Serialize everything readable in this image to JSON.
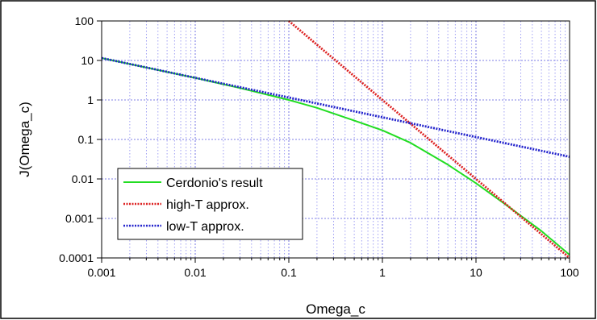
{
  "chart_data": {
    "type": "line",
    "xlabel": "Omega_c",
    "ylabel": "J(Omega_c)",
    "x_scale": "log",
    "y_scale": "log",
    "xlim": [
      0.001,
      100
    ],
    "ylim": [
      0.0001,
      100
    ],
    "x_ticks": [
      "0.001",
      "0.01",
      "0.1",
      "1",
      "10",
      "100"
    ],
    "y_ticks": [
      "100",
      "10",
      "1",
      "0.1",
      "0.01",
      "0.001",
      "0.0001"
    ],
    "grid": true,
    "legend_position": "lower-left",
    "series": [
      {
        "name": "Cerdonio's result",
        "color": "#22dd22",
        "style": "solid",
        "x": [
          0.001,
          0.003,
          0.01,
          0.03,
          0.1,
          0.2,
          0.5,
          1,
          2,
          5,
          10,
          20,
          50,
          100
        ],
        "y": [
          11.5,
          6.6,
          3.6,
          2.0,
          1.0,
          0.63,
          0.3,
          0.17,
          0.082,
          0.023,
          0.0078,
          0.0024,
          0.00048,
          0.00012
        ]
      },
      {
        "name": "high-T approx.",
        "color": "#dd2222",
        "style": "dotted",
        "x": [
          0.1,
          1,
          10,
          100
        ],
        "y": [
          100,
          1.0,
          0.01,
          0.0001
        ]
      },
      {
        "name": "low-T approx.",
        "color": "#2222cc",
        "style": "dotted",
        "x": [
          0.001,
          0.01,
          0.1,
          1,
          10,
          100
        ],
        "y": [
          11.5,
          3.64,
          1.15,
          0.364,
          0.115,
          0.0364
        ]
      }
    ]
  }
}
